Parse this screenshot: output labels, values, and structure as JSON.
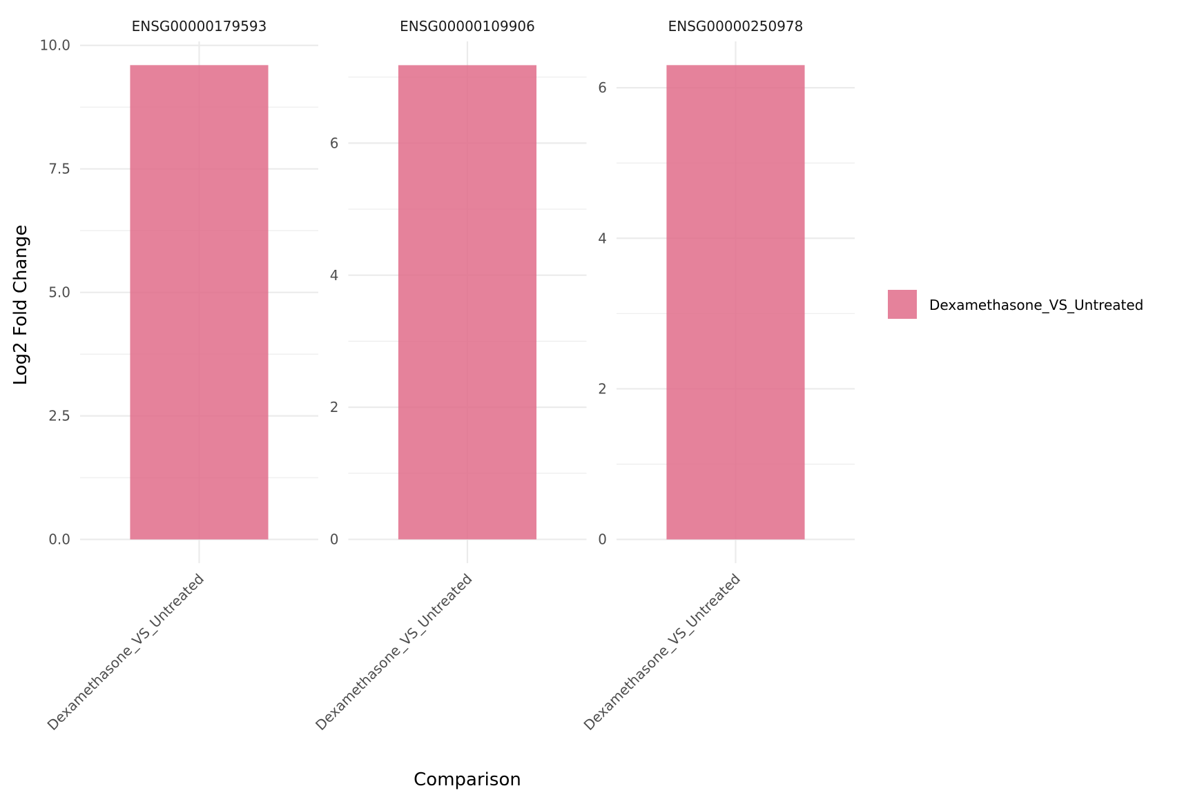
{
  "chart_data": {
    "type": "bar",
    "xlabel": "Comparison",
    "ylabel": "Log2 Fold Change",
    "grid": true,
    "legend": {
      "placement": "right",
      "entries": [
        {
          "label": "Dexamethasone_VS_Untreated",
          "color": "#e06c89"
        }
      ]
    },
    "bar_color": "#e06c89",
    "bar_opacity": 0.85,
    "facets": [
      {
        "title": "ENSG00000179593",
        "categories": [
          "Dexamethasone_VS_Untreated"
        ],
        "values": [
          9.6
        ],
        "ylim": [
          -0.48,
          10.08
        ],
        "major_ticks": [
          0,
          2.5,
          5,
          7.5,
          10
        ],
        "tick_labels": [
          "0.0",
          "2.5",
          "5.0",
          "7.5",
          "10.0"
        ],
        "minor_ticks": [
          1.25,
          3.75,
          6.25,
          8.75
        ]
      },
      {
        "title": "ENSG00000109906",
        "categories": [
          "Dexamethasone_VS_Untreated"
        ],
        "values": [
          7.18
        ],
        "ylim": [
          -0.36,
          7.54
        ],
        "major_ticks": [
          0,
          2,
          4,
          6
        ],
        "tick_labels": [
          "0",
          "2",
          "4",
          "6"
        ],
        "minor_ticks": [
          1,
          3,
          5,
          7
        ]
      },
      {
        "title": "ENSG00000250978",
        "categories": [
          "Dexamethasone_VS_Untreated"
        ],
        "values": [
          6.3
        ],
        "ylim": [
          -0.315,
          6.615
        ],
        "major_ticks": [
          0,
          2,
          4,
          6
        ],
        "tick_labels": [
          "0",
          "2",
          "4",
          "6"
        ],
        "minor_ticks": [
          1,
          3,
          5
        ]
      }
    ]
  }
}
